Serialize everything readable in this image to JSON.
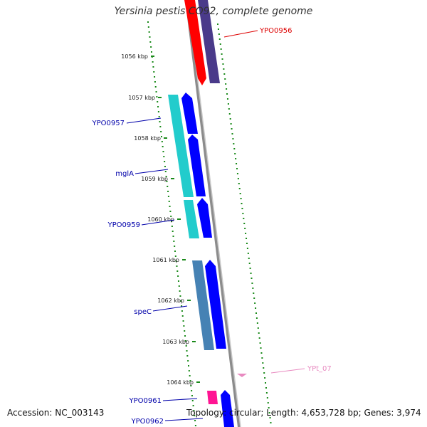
{
  "title": "Yersinia pestis CO92, complete genome",
  "footer": {
    "accession": "Accession: NC_003143",
    "summary": "Topology: circular; Length: 4,653,728 bp; Genes: 3,974"
  },
  "ticks": [
    {
      "label": "1056 kbp"
    },
    {
      "label": "1057 kbp"
    },
    {
      "label": "1058 kbp"
    },
    {
      "label": "1059 kbp"
    },
    {
      "label": "1060 kbp"
    },
    {
      "label": "1061 kbp"
    },
    {
      "label": "1062 kbp"
    },
    {
      "label": "1063 kbp"
    },
    {
      "label": "1064 kbp"
    }
  ],
  "gene_labels": [
    {
      "name": "YPO0956",
      "color": "#dd0000"
    },
    {
      "name": "YPO0957",
      "color": "#0000aa"
    },
    {
      "name": "mglA",
      "color": "#0000aa"
    },
    {
      "name": "YPO0959",
      "color": "#0000aa"
    },
    {
      "name": "speC",
      "color": "#0000aa"
    },
    {
      "name": "YPt_07",
      "color": "#e88ac0"
    },
    {
      "name": "YPO0961",
      "color": "#0000aa"
    },
    {
      "name": "YPO0962",
      "color": "#0000aa"
    }
  ],
  "colors": {
    "backbone": "#8c8c8c",
    "gc_dots": "#1a8a1a",
    "cds_forward": "#0000ff",
    "cds_red": "#ff0000",
    "cds_purple": "#4a3a8a",
    "cds_cyan": "#22cccc",
    "cds_steel": "#4682b4",
    "cds_pink": "#ff1493",
    "trna_pink": "#e88ac0"
  }
}
